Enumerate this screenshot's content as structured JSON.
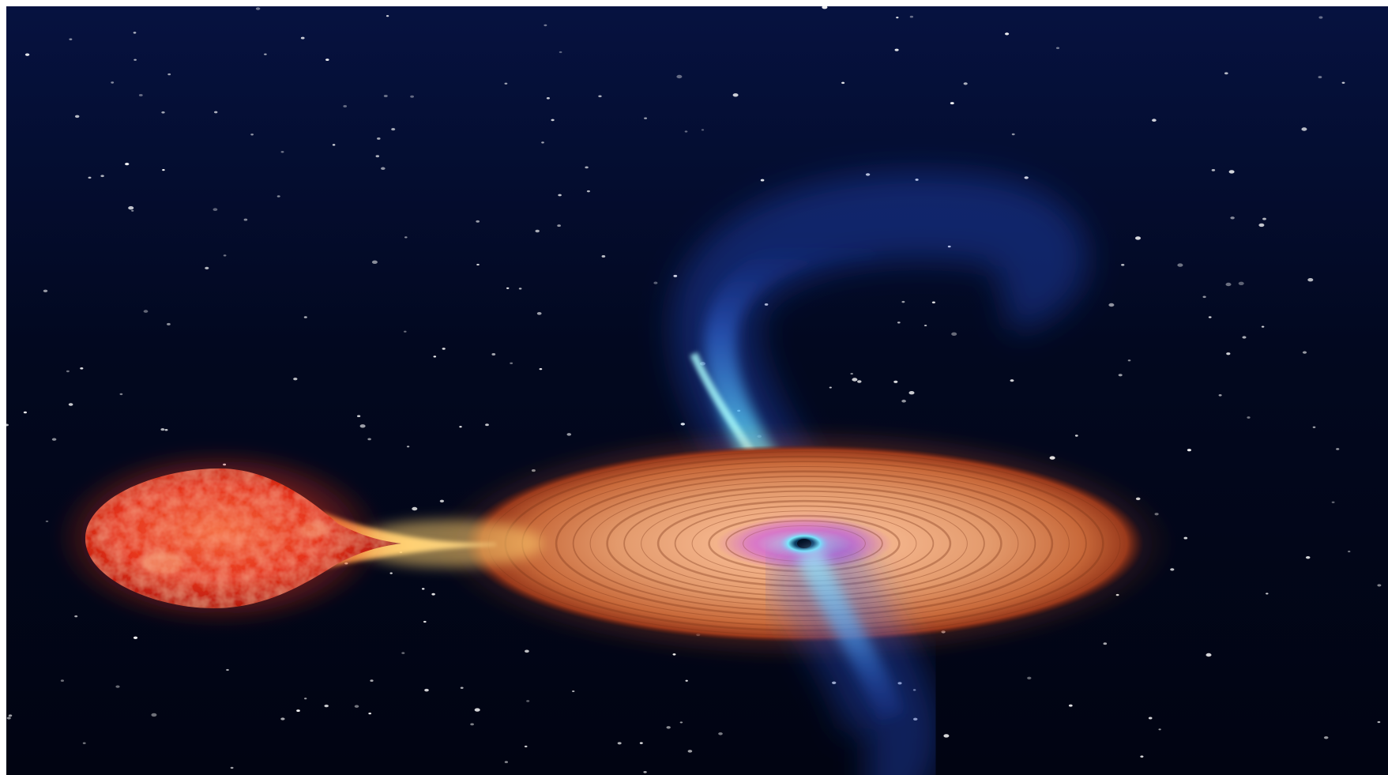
{
  "image": {
    "subject": "binary-star-black-hole-illustration",
    "elements": [
      "background-starfield",
      "red-donor-star",
      "mass-transfer-stream",
      "accretion-disk",
      "black-hole",
      "upper-jet",
      "lower-jet"
    ]
  },
  "colors": {
    "space_top": "#02081f",
    "space_bottom": "#010412",
    "star_red": "#e6331c",
    "star_highlight": "#f7b48a",
    "stream_gold": "#ffd27a",
    "disk_outer": "#b3552a",
    "disk_inner": "#f3b38a",
    "disk_core_pink": "#d878c8",
    "core_cyan": "#9ff8ff",
    "jet_blue": "#3d80ff",
    "jet_cyan": "#64f0ff"
  }
}
